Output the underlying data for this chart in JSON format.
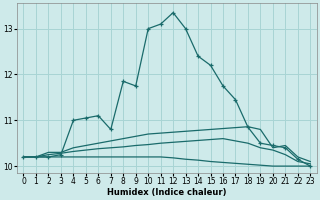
{
  "xlabel": "Humidex (Indice chaleur)",
  "background_color": "#ceeaea",
  "grid_color": "#a8d4d4",
  "line_color": "#1a6b6b",
  "xlim": [
    -0.5,
    23.5
  ],
  "ylim": [
    9.85,
    13.55
  ],
  "yticks": [
    10,
    11,
    12,
    13
  ],
  "xticks": [
    0,
    1,
    2,
    3,
    4,
    5,
    6,
    7,
    8,
    9,
    10,
    11,
    12,
    13,
    14,
    15,
    16,
    17,
    18,
    19,
    20,
    21,
    22,
    23
  ],
  "series": [
    {
      "x": [
        0,
        1,
        2,
        3,
        4,
        5,
        6,
        7,
        8,
        9,
        10,
        11,
        12,
        13,
        14,
        15,
        16,
        17,
        18,
        19,
        20,
        21,
        22,
        23
      ],
      "y": [
        10.2,
        10.2,
        10.2,
        10.25,
        11.0,
        11.05,
        11.1,
        10.8,
        11.85,
        11.75,
        13.0,
        13.1,
        13.35,
        13.0,
        12.4,
        12.2,
        11.75,
        11.45,
        10.85,
        10.5,
        10.45,
        10.4,
        10.15,
        10.0
      ],
      "marker": true
    },
    {
      "x": [
        0,
        1,
        2,
        3,
        4,
        5,
        6,
        7,
        8,
        9,
        10,
        11,
        12,
        13,
        14,
        15,
        16,
        17,
        18,
        19,
        20,
        21,
        22,
        23
      ],
      "y": [
        10.2,
        10.2,
        10.3,
        10.3,
        10.4,
        10.45,
        10.5,
        10.55,
        10.6,
        10.65,
        10.7,
        10.72,
        10.74,
        10.76,
        10.78,
        10.8,
        10.82,
        10.84,
        10.86,
        10.8,
        10.4,
        10.45,
        10.2,
        10.1
      ],
      "marker": false
    },
    {
      "x": [
        0,
        1,
        2,
        3,
        4,
        5,
        6,
        7,
        8,
        9,
        10,
        11,
        12,
        13,
        14,
        15,
        16,
        17,
        18,
        19,
        20,
        21,
        22,
        23
      ],
      "y": [
        10.2,
        10.2,
        10.25,
        10.28,
        10.32,
        10.35,
        10.38,
        10.4,
        10.42,
        10.45,
        10.47,
        10.5,
        10.52,
        10.54,
        10.56,
        10.58,
        10.6,
        10.55,
        10.5,
        10.4,
        10.35,
        10.25,
        10.1,
        10.05
      ],
      "marker": false
    },
    {
      "x": [
        0,
        1,
        2,
        3,
        4,
        5,
        6,
        7,
        8,
        9,
        10,
        11,
        12,
        13,
        14,
        15,
        16,
        17,
        18,
        19,
        20,
        21,
        22,
        23
      ],
      "y": [
        10.2,
        10.2,
        10.2,
        10.2,
        10.2,
        10.2,
        10.2,
        10.2,
        10.2,
        10.2,
        10.2,
        10.2,
        10.18,
        10.15,
        10.13,
        10.1,
        10.08,
        10.06,
        10.04,
        10.02,
        10.0,
        10.0,
        10.0,
        10.0
      ],
      "marker": false
    }
  ]
}
